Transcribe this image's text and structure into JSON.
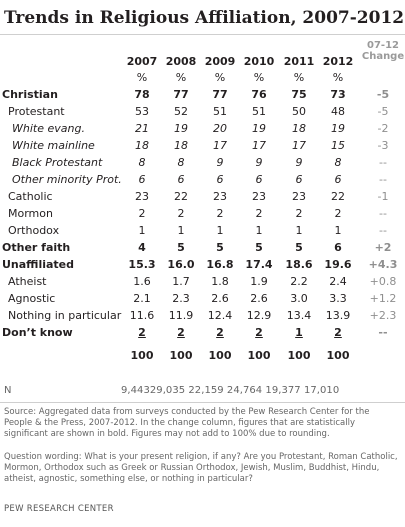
{
  "title": "Trends in Religious Affiliation, 2007-2012",
  "years": [
    "2007",
    "2008",
    "2009",
    "2010",
    "2011",
    "2012"
  ],
  "pct_symbol": "%",
  "change_header_line1": "07-12",
  "change_header_line2": "Change",
  "rows": [
    {
      "label": "Christian",
      "values": [
        "78",
        "77",
        "77",
        "76",
        "75",
        "73"
      ],
      "change": "-5",
      "style": "bold",
      "indent": 0
    },
    {
      "label": "Protestant",
      "values": [
        "53",
        "52",
        "51",
        "51",
        "50",
        "48"
      ],
      "change": "-5",
      "style": "normal",
      "indent": 1
    },
    {
      "label": "White evang.",
      "values": [
        "21",
        "19",
        "20",
        "19",
        "18",
        "19"
      ],
      "change": "-2",
      "style": "italic",
      "indent": 2
    },
    {
      "label": "White mainline",
      "values": [
        "18",
        "18",
        "17",
        "17",
        "17",
        "15"
      ],
      "change": "-3",
      "style": "italic",
      "indent": 2
    },
    {
      "label": "Black Protestant",
      "values": [
        "8",
        "8",
        "9",
        "9",
        "9",
        "8"
      ],
      "change": "--",
      "style": "italic",
      "indent": 2
    },
    {
      "label": "Other minority Prot.",
      "values": [
        "6",
        "6",
        "6",
        "6",
        "6",
        "6"
      ],
      "change": "--",
      "style": "italic",
      "indent": 2
    },
    {
      "label": "Catholic",
      "values": [
        "23",
        "22",
        "23",
        "23",
        "23",
        "22"
      ],
      "change": "-1",
      "style": "normal",
      "indent": 1
    },
    {
      "label": "Mormon",
      "values": [
        "2",
        "2",
        "2",
        "2",
        "2",
        "2"
      ],
      "change": "--",
      "style": "normal",
      "indent": 1
    },
    {
      "label": "Orthodox",
      "values": [
        "1",
        "1",
        "1",
        "1",
        "1",
        "1"
      ],
      "change": "--",
      "style": "normal",
      "indent": 1
    },
    {
      "label": "Other faith",
      "values": [
        "4",
        "5",
        "5",
        "5",
        "5",
        "6"
      ],
      "change": "+2",
      "style": "bold",
      "indent": 0
    },
    {
      "label": "Unaffiliated",
      "values": [
        "15.3",
        "16.0",
        "16.8",
        "17.4",
        "18.6",
        "19.6"
      ],
      "change": "+4.3",
      "style": "bold",
      "indent": 0
    },
    {
      "label": "Atheist",
      "values": [
        "1.6",
        "1.7",
        "1.8",
        "1.9",
        "2.2",
        "2.4"
      ],
      "change": "+0.8",
      "style": "normal",
      "indent": 1
    },
    {
      "label": "Agnostic",
      "values": [
        "2.1",
        "2.3",
        "2.6",
        "2.6",
        "3.0",
        "3.3"
      ],
      "change": "+1.2",
      "style": "normal",
      "indent": 1
    },
    {
      "label": "Nothing in particular",
      "values": [
        "11.6",
        "11.9",
        "12.4",
        "12.9",
        "13.4",
        "13.9"
      ],
      "change": "+2.3",
      "style": "normal",
      "indent": 1
    },
    {
      "label": "Don’t know",
      "values": [
        "2",
        "2",
        "2",
        "2",
        "1",
        "2"
      ],
      "change": "--",
      "style": "bold-underline",
      "indent": 0
    },
    {
      "label": "",
      "values": [
        "100",
        "100",
        "100",
        "100",
        "100",
        "100"
      ],
      "change": "",
      "style": "bold",
      "indent": 0
    }
  ],
  "n_label": "N",
  "n_values": "9,44329,035 22,159 24,764 19,377 17,010",
  "source_note": "Source: Aggregated data from surveys conducted by the Pew Research Center for the People & the Press, 2007-2012. In the change column, figures that are statistically significant are shown in bold. Figures may not add to 100% due to rounding.",
  "question_note": "Question wording: What is your present religion, if any? Are you Protestant, Roman Catholic, Mormon, Orthodox such as Greek or Russian Orthodox, Jewish, Muslim, Buddhist, Hindu, atheist, agnostic, something else, or nothing in particular?",
  "branding": "PEW RESEARCH CENTER",
  "colors": {
    "text": "#231f20",
    "muted": "#8f8f8f",
    "rule": "#cfcfcf"
  }
}
